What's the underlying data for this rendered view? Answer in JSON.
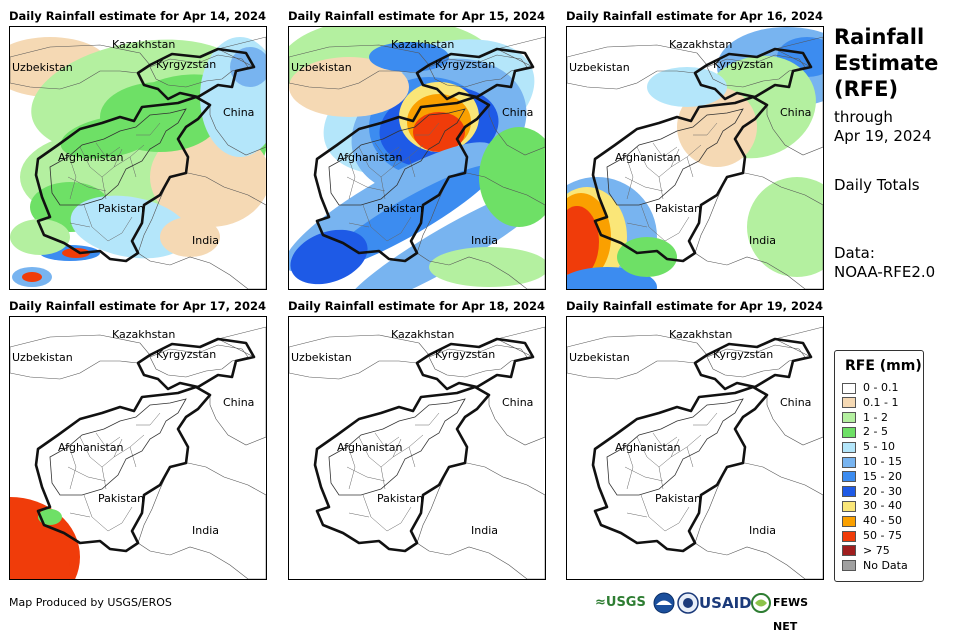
{
  "panels": [
    {
      "title": "Daily Rainfall estimate for Apr 14, 2024",
      "rain_summary": "widespread light-to-moderate rainfall"
    },
    {
      "title": "Daily Rainfall estimate for Apr 15, 2024",
      "rain_summary": "heavy rainfall over northeastern Afghanistan"
    },
    {
      "title": "Daily Rainfall estimate for Apr 16, 2024",
      "rain_summary": "heavy rainfall over southwestern Pakistan coast"
    },
    {
      "title": "Daily Rainfall estimate for Apr 17, 2024",
      "rain_summary": "heavy rainfall over southwestern corner"
    },
    {
      "title": "Daily Rainfall estimate for Apr 18, 2024",
      "rain_summary": "no rainfall"
    },
    {
      "title": "Daily Rainfall estimate for Apr 19, 2024",
      "rain_summary": "no rainfall"
    }
  ],
  "map_labels": {
    "kazakhstan": "Kazakhstan",
    "uzbekistan": "Uzbekistan",
    "kyrgyzstan": "Kyrgyzstan",
    "china": "China",
    "afghanistan": "Afghanistan",
    "pakistan": "Pakistan",
    "india": "India"
  },
  "side": {
    "title_line1": "Rainfall",
    "title_line2": "Estimate",
    "title_line3": "(RFE)",
    "through": "through",
    "date": "Apr 19, 2024",
    "totals": "Daily Totals",
    "data_label": "Data:",
    "data_source": "NOAA-RFE2.0"
  },
  "legend": {
    "title": "RFE (mm)",
    "items": [
      {
        "label": "0 - 0.1",
        "color": "#ffffff"
      },
      {
        "label": "0.1 - 1",
        "color": "#f5d9b4"
      },
      {
        "label": "1 - 2",
        "color": "#b4f0a0"
      },
      {
        "label": "2 - 5",
        "color": "#6ee066"
      },
      {
        "label": "5 - 10",
        "color": "#b4e6fa"
      },
      {
        "label": "10 - 15",
        "color": "#78b4f0"
      },
      {
        "label": "15 - 20",
        "color": "#3c8cf0"
      },
      {
        "label": "20 - 30",
        "color": "#1e5ae6"
      },
      {
        "label": "30 - 40",
        "color": "#fae678"
      },
      {
        "label": "40 - 50",
        "color": "#faa000"
      },
      {
        "label": "50 - 75",
        "color": "#f03c0a"
      },
      {
        "label": "> 75",
        "color": "#a01e1e"
      },
      {
        "label": "No Data",
        "color": "#a0a0a0"
      }
    ]
  },
  "footer": {
    "credit": "Map Produced by USGS/EROS",
    "logo_usgs": "≈USGS",
    "logo_usaid": "USAID",
    "logo_fewsnet": "FEWS NET"
  }
}
